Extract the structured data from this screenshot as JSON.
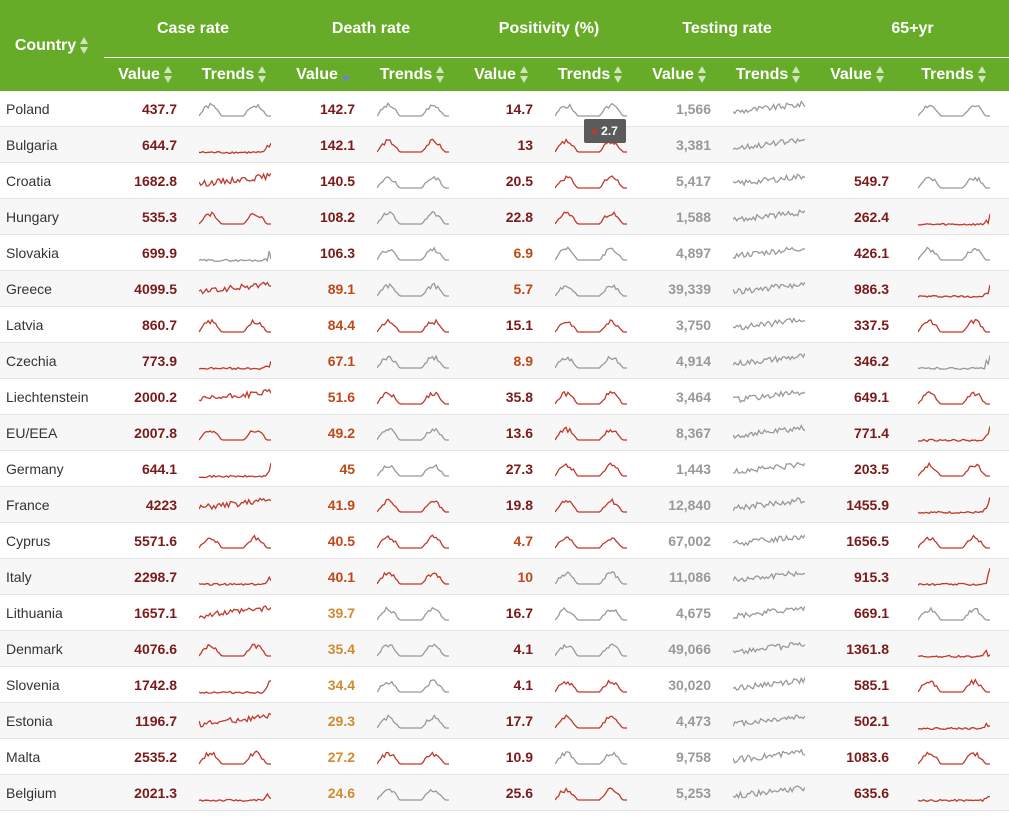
{
  "headers": {
    "country": "Country",
    "groups": [
      "Case rate",
      "Death rate",
      "Positivity (%)",
      "Testing rate",
      "65+yr"
    ],
    "value": "Value",
    "trends": "Trends"
  },
  "tooltip": {
    "value": "2.7"
  },
  "colors": {
    "dark_red": "#8b1a1a",
    "red_line": "#c0392b",
    "gray_line": "#999999",
    "header_green": "#67ac28"
  },
  "rows": [
    {
      "country": "Poland",
      "case": "437.7",
      "death": "142.7",
      "pos": "14.7",
      "test": "1,566",
      "old": ""
    },
    {
      "country": "Bulgaria",
      "case": "644.7",
      "death": "142.1",
      "pos": "13",
      "test": "3,381",
      "old": ""
    },
    {
      "country": "Croatia",
      "case": "1682.8",
      "death": "140.5",
      "pos": "20.5",
      "test": "5,417",
      "old": "549.7"
    },
    {
      "country": "Hungary",
      "case": "535.3",
      "death": "108.2",
      "pos": "22.8",
      "test": "1,588",
      "old": "262.4"
    },
    {
      "country": "Slovakia",
      "case": "699.9",
      "death": "106.3",
      "pos": "6.9",
      "test": "4,897",
      "old": "426.1"
    },
    {
      "country": "Greece",
      "case": "4099.5",
      "death": "89.1",
      "pos": "5.7",
      "test": "39,339",
      "old": "986.3"
    },
    {
      "country": "Latvia",
      "case": "860.7",
      "death": "84.4",
      "pos": "15.1",
      "test": "3,750",
      "old": "337.5"
    },
    {
      "country": "Czechia",
      "case": "773.9",
      "death": "67.1",
      "pos": "8.9",
      "test": "4,914",
      "old": "346.2"
    },
    {
      "country": "Liechtenstein",
      "case": "2000.2",
      "death": "51.6",
      "pos": "35.8",
      "test": "3,464",
      "old": "649.1"
    },
    {
      "country": "EU/EEA",
      "case": "2007.8",
      "death": "49.2",
      "pos": "13.6",
      "test": "8,367",
      "old": "771.4"
    },
    {
      "country": "Germany",
      "case": "644.1",
      "death": "45",
      "pos": "27.3",
      "test": "1,443",
      "old": "203.5"
    },
    {
      "country": "France",
      "case": "4223",
      "death": "41.9",
      "pos": "19.8",
      "test": "12,840",
      "old": "1455.9"
    },
    {
      "country": "Cyprus",
      "case": "5571.6",
      "death": "40.5",
      "pos": "4.7",
      "test": "67,002",
      "old": "1656.5"
    },
    {
      "country": "Italy",
      "case": "2298.7",
      "death": "40.1",
      "pos": "10",
      "test": "11,086",
      "old": "915.3"
    },
    {
      "country": "Lithuania",
      "case": "1657.1",
      "death": "39.7",
      "pos": "16.7",
      "test": "4,675",
      "old": "669.1"
    },
    {
      "country": "Denmark",
      "case": "4076.6",
      "death": "35.4",
      "pos": "4.1",
      "test": "49,066",
      "old": "1361.8"
    },
    {
      "country": "Slovenia",
      "case": "1742.8",
      "death": "34.4",
      "pos": "4.1",
      "test": "30,020",
      "old": "585.1"
    },
    {
      "country": "Estonia",
      "case": "1196.7",
      "death": "29.3",
      "pos": "17.7",
      "test": "4,473",
      "old": "502.1"
    },
    {
      "country": "Malta",
      "case": "2535.2",
      "death": "27.2",
      "pos": "10.9",
      "test": "9,758",
      "old": "1083.6"
    },
    {
      "country": "Belgium",
      "case": "2021.3",
      "death": "24.6",
      "pos": "25.6",
      "test": "5,253",
      "old": "635.6"
    }
  ]
}
